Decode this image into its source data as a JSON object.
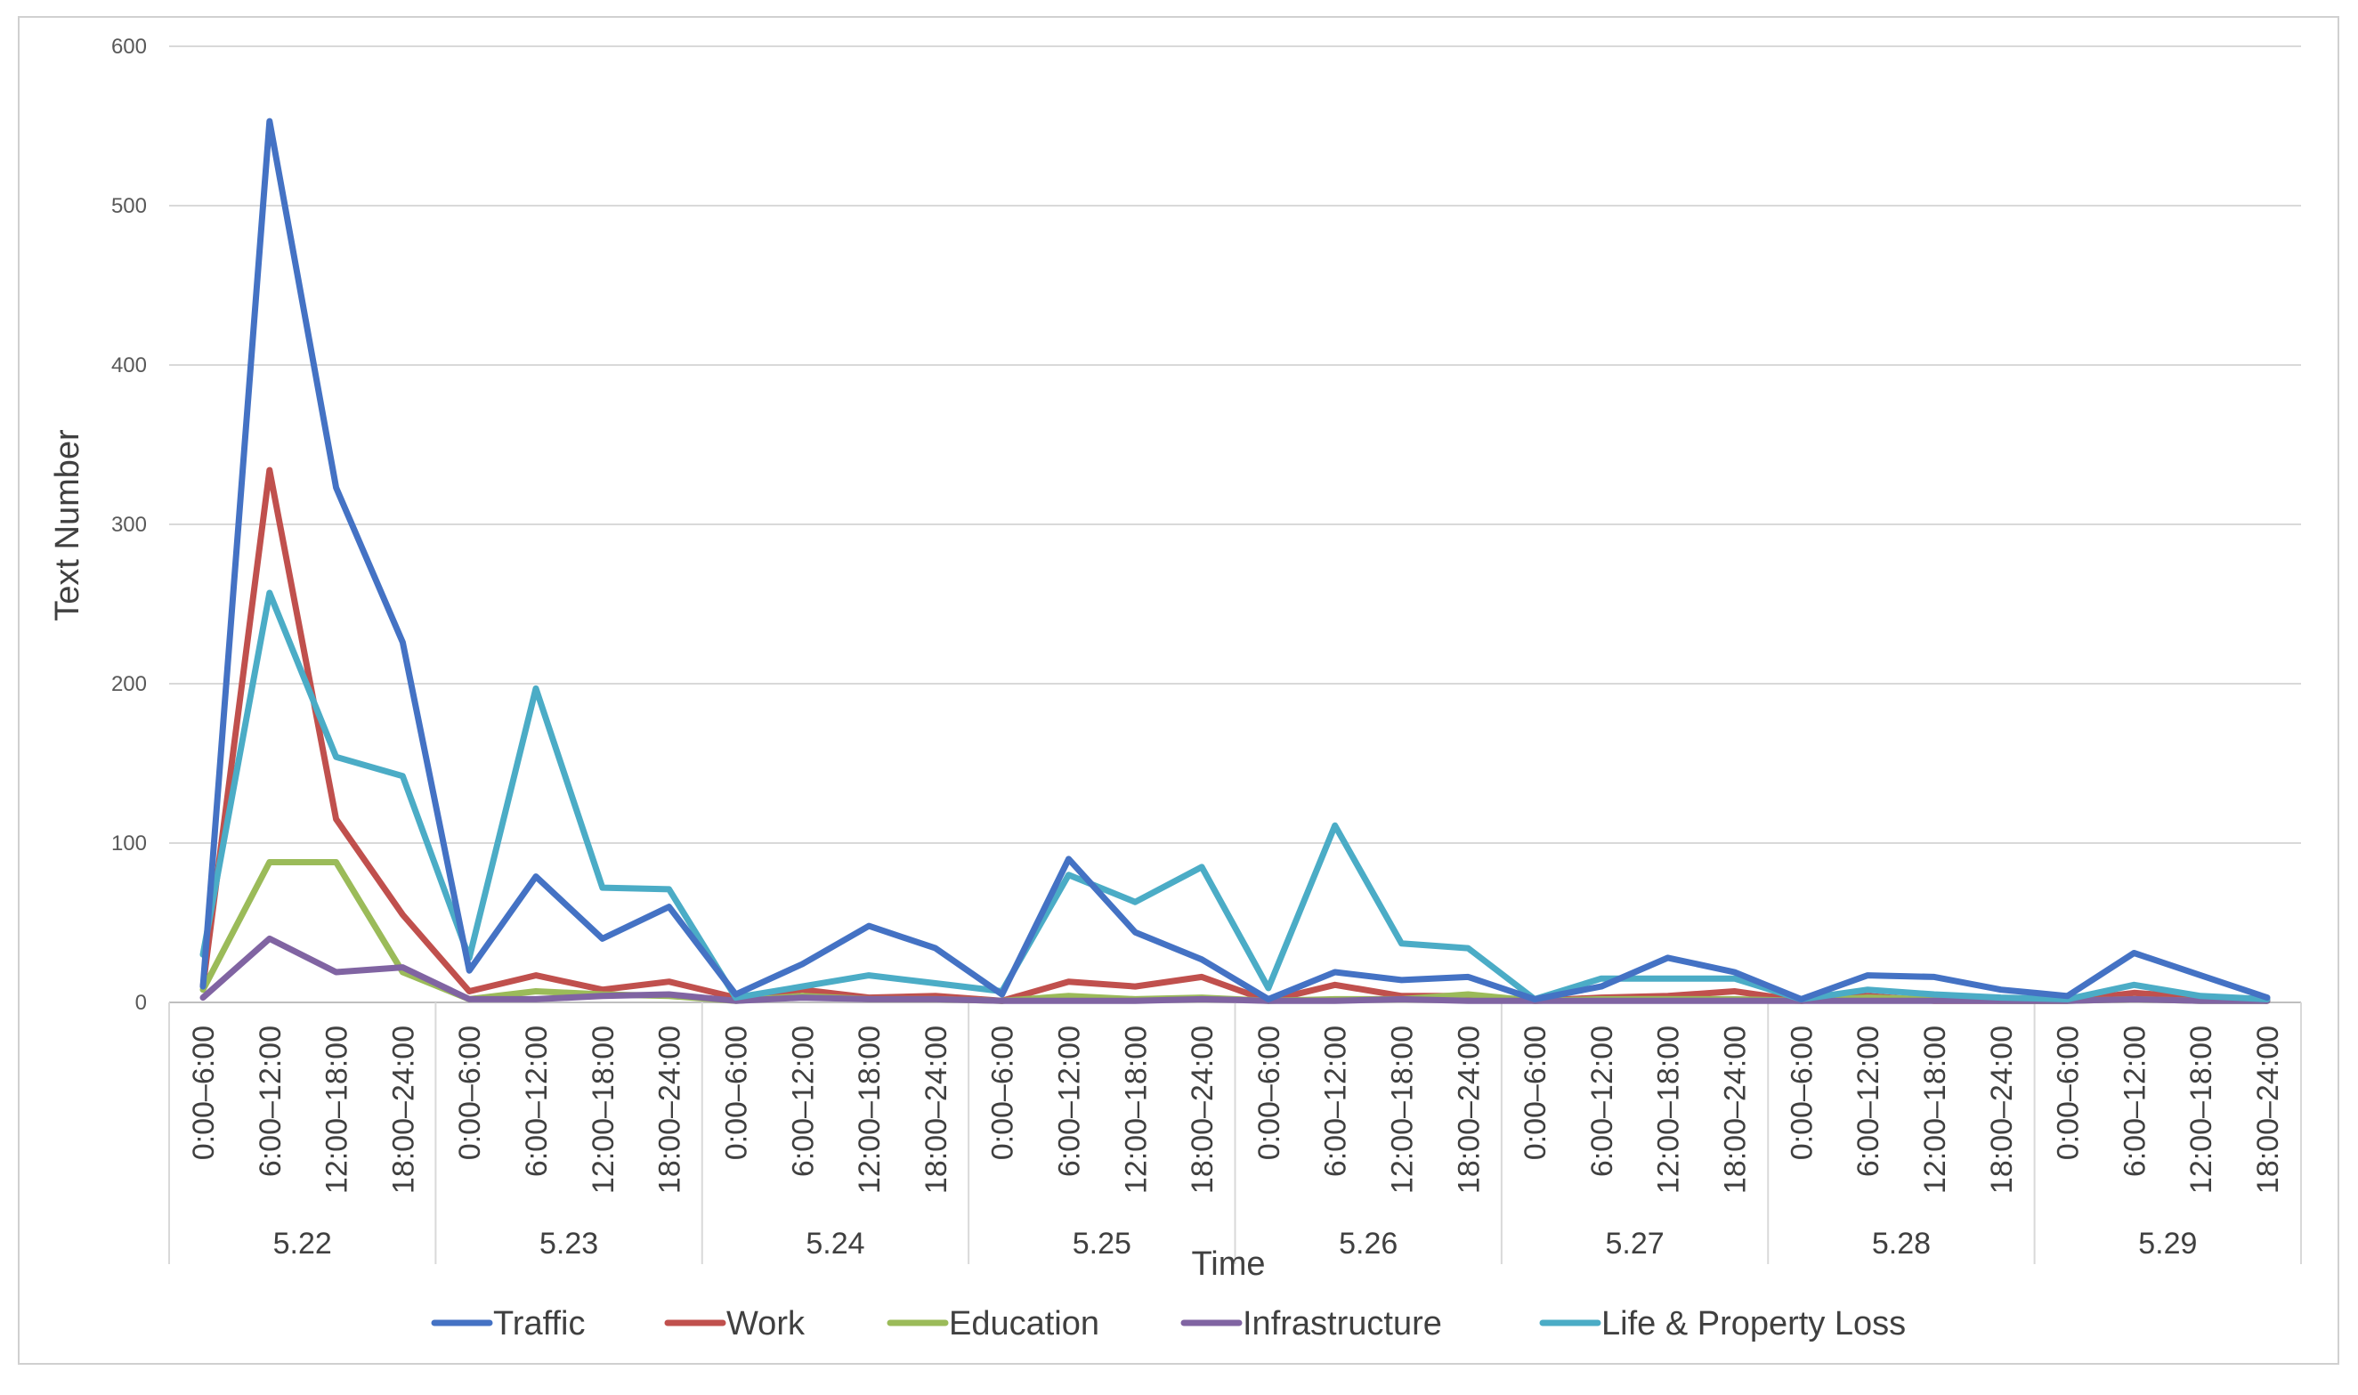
{
  "chart_data": {
    "type": "line",
    "xlabel": "Time",
    "ylabel": "Text Number",
    "ylim": [
      0,
      600
    ],
    "yticks": [
      "0",
      "100",
      "200",
      "300",
      "400",
      "500",
      "600"
    ],
    "grid": true,
    "legend_position": "bottom",
    "days": [
      "5.22",
      "5.23",
      "5.24",
      "5.25",
      "5.26",
      "5.27",
      "5.28",
      "5.29"
    ],
    "periods": [
      "0:00–6:00",
      "6:00–12:00",
      "12:00–18:00",
      "18:00–24:00"
    ],
    "series": [
      {
        "name": "Traffic",
        "color": "#4472C4",
        "values": [
          10,
          553,
          323,
          226,
          20,
          79,
          40,
          60,
          5,
          24,
          48,
          34,
          5,
          90,
          44,
          27,
          2,
          19,
          14,
          16,
          2,
          10,
          28,
          19,
          2,
          17,
          16,
          8,
          4,
          31,
          17,
          3
        ]
      },
      {
        "name": "Work",
        "color": "#C0504D",
        "values": [
          10,
          334,
          115,
          55,
          7,
          17,
          8,
          13,
          3,
          8,
          3,
          4,
          1,
          13,
          10,
          16,
          1,
          11,
          4,
          4,
          1,
          3,
          4,
          7,
          1,
          4,
          1,
          1,
          1,
          6,
          3,
          1
        ]
      },
      {
        "name": "Education",
        "color": "#9BBB59",
        "values": [
          8,
          88,
          88,
          19,
          2,
          7,
          5,
          4,
          1,
          4,
          2,
          2,
          1,
          4,
          2,
          3,
          1,
          2,
          2,
          5,
          1,
          2,
          2,
          2,
          1,
          3,
          2,
          1,
          1,
          2,
          1,
          1
        ]
      },
      {
        "name": "Infrastructure",
        "color": "#8064A2",
        "values": [
          3,
          40,
          19,
          22,
          2,
          2,
          4,
          5,
          1,
          3,
          2,
          2,
          1,
          1,
          1,
          2,
          1,
          1,
          2,
          1,
          1,
          1,
          1,
          1,
          1,
          1,
          1,
          1,
          1,
          2,
          1,
          1
        ]
      },
      {
        "name": "Life & Property Loss",
        "color": "#4BACC6",
        "values": [
          30,
          257,
          154,
          142,
          28,
          197,
          72,
          71,
          3,
          10,
          17,
          12,
          7,
          80,
          63,
          85,
          9,
          111,
          37,
          34,
          2,
          15,
          15,
          15,
          2,
          8,
          5,
          3,
          2,
          11,
          4,
          2
        ]
      }
    ]
  }
}
